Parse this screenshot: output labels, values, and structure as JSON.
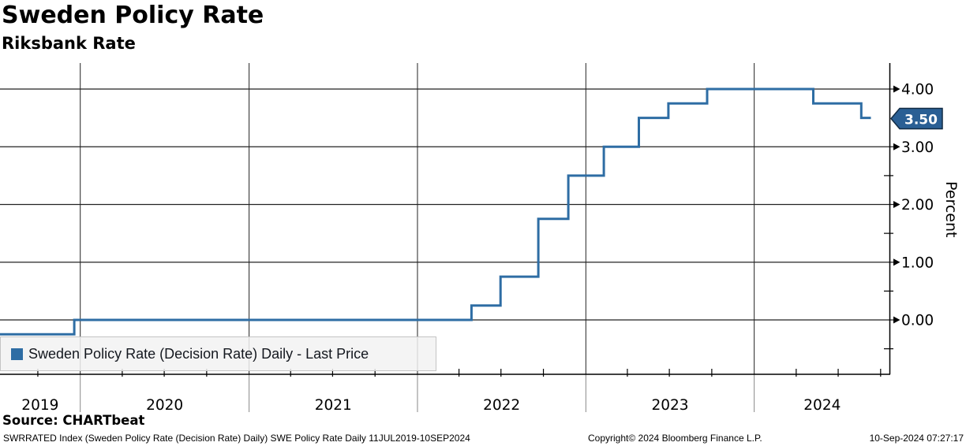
{
  "header": {
    "title": "Sweden Policy Rate",
    "subtitle": "Riksbank Rate"
  },
  "legend": {
    "label": "Sweden Policy Rate (Decision Rate) Daily - Last Price"
  },
  "source": {
    "label": "Source: CHARTbeat"
  },
  "footer": {
    "ticker_info": "SWRRATED Index (Sweden Policy Rate (Decision Rate) Daily) SWE Policy Rate  Daily 11JUL2019-10SEP2024",
    "copyright": "Copyright© 2024 Bloomberg Finance L.P.",
    "timestamp": "10-Sep-2024 07:27:17"
  },
  "chart_data": {
    "type": "line",
    "line_style": "step-after",
    "title": "Sweden Policy Rate",
    "subtitle": "Riksbank Rate",
    "ylabel": "Percent",
    "xlabel": "",
    "grid": true,
    "legend_position": "bottom-left",
    "x_domain": [
      "2019-07-11",
      "2024-09-10"
    ],
    "x_year_labels": [
      "2019",
      "2020",
      "2021",
      "2022",
      "2023",
      "2024"
    ],
    "y_ticks_major": [
      0.0,
      1.0,
      2.0,
      3.0,
      4.0
    ],
    "y_tick_labels": [
      "0.00",
      "1.00",
      "2.00",
      "3.00",
      "4.00"
    ],
    "y_ticks_minor": [
      -0.5,
      0.5,
      1.5,
      2.5
    ],
    "ylim": [
      -0.95,
      4.45
    ],
    "last_price": 3.5,
    "last_price_label": "3.50",
    "series": [
      {
        "name": "Sweden Policy Rate (Decision Rate) Daily - Last Price",
        "color": "#2e6da4",
        "points": [
          {
            "date": "2019-07-11",
            "value": -0.25
          },
          {
            "date": "2019-12-19",
            "value": 0.0
          },
          {
            "date": "2022-04-28",
            "value": 0.25
          },
          {
            "date": "2022-06-30",
            "value": 0.75
          },
          {
            "date": "2022-09-20",
            "value": 1.75
          },
          {
            "date": "2022-11-24",
            "value": 2.5
          },
          {
            "date": "2023-02-09",
            "value": 3.0
          },
          {
            "date": "2023-04-26",
            "value": 3.5
          },
          {
            "date": "2023-06-29",
            "value": 3.75
          },
          {
            "date": "2023-09-21",
            "value": 4.0
          },
          {
            "date": "2024-05-08",
            "value": 3.75
          },
          {
            "date": "2024-08-20",
            "value": 3.5
          },
          {
            "date": "2024-09-10",
            "value": 3.5
          }
        ]
      }
    ]
  },
  "colors": {
    "line": "#2e6da4",
    "badge_fill": "#2a5f94",
    "badge_border": "#122b44",
    "badge_text": "#ffffff",
    "grid": "#222222",
    "axis": "#000000",
    "year_divider_below_axis": "#888888",
    "legend_bg": "#f2f2f2",
    "legend_border": "#c4c4c4",
    "text": "#000000"
  }
}
